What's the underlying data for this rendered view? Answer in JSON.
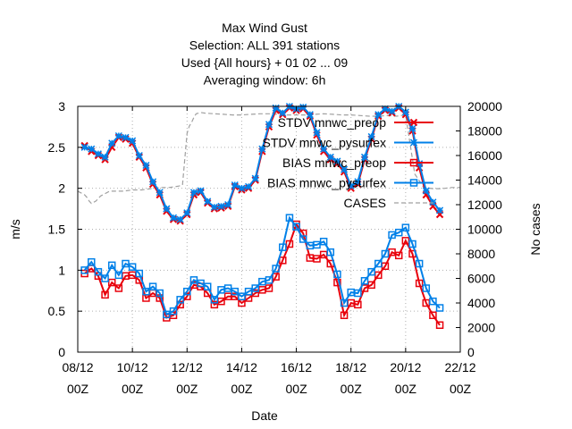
{
  "chart_data": {
    "type": "line",
    "title_lines": [
      "Max Wind Gust",
      "Selection: ALL    391 stations",
      "Used {All hours} + 01 02 ... 09",
      "Averaging window:  6h"
    ],
    "xlabel": "Date",
    "ylabel": "m/s",
    "y2label": "No cases",
    "xlim": [
      0,
      84
    ],
    "ylim": [
      0,
      3
    ],
    "y2lim": [
      0,
      20000
    ],
    "x_ticks": [
      {
        "x": 0,
        "label1": "08/12",
        "label2": "00Z"
      },
      {
        "x": 12,
        "label1": "10/12",
        "label2": "00Z"
      },
      {
        "x": 24,
        "label1": "12/12",
        "label2": "00Z"
      },
      {
        "x": 36,
        "label1": "14/12",
        "label2": "00Z"
      },
      {
        "x": 48,
        "label1": "16/12",
        "label2": "00Z"
      },
      {
        "x": 60,
        "label1": "18/12",
        "label2": "00Z"
      },
      {
        "x": 72,
        "label1": "20/12",
        "label2": "00Z"
      },
      {
        "x": 84,
        "label1": "22/12",
        "label2": "00Z"
      }
    ],
    "y_ticks": [
      "0",
      "0.5",
      "1",
      "1.5",
      "2",
      "2.5",
      "3"
    ],
    "y_tick_values": [
      0,
      0.5,
      1,
      1.5,
      2,
      2.5,
      3
    ],
    "y2_ticks": [
      "0",
      "2000",
      "4000",
      "6000",
      "8000",
      "10000",
      "12000",
      "14000",
      "16000",
      "18000",
      "20000"
    ],
    "y2_tick_values": [
      0,
      2000,
      4000,
      6000,
      8000,
      10000,
      12000,
      14000,
      16000,
      18000,
      20000
    ],
    "grid": true,
    "legend_position": "top-right",
    "x": [
      1.5,
      3,
      4.5,
      6,
      7.5,
      9,
      10.5,
      12,
      13.5,
      15,
      16.5,
      18,
      19.5,
      21,
      22.5,
      24,
      25.5,
      27,
      28.5,
      30,
      31.5,
      33,
      34.5,
      36,
      37.5,
      39,
      40.5,
      42,
      43.5,
      45,
      46.5,
      48,
      49.5,
      51,
      52.5,
      54,
      55.5,
      57,
      58.5,
      60,
      61.5,
      63,
      64.5,
      66,
      67.5,
      69,
      70.5,
      72,
      73.5,
      75,
      76.5,
      78,
      79.5
    ],
    "series": [
      {
        "name": "STDV mnwc_preop",
        "axis": "y",
        "color": "#e8000b",
        "marker": "x",
        "values": [
          2.52,
          2.45,
          2.4,
          2.35,
          2.5,
          2.62,
          2.6,
          2.55,
          2.38,
          2.25,
          2.05,
          1.92,
          1.72,
          1.62,
          1.6,
          1.68,
          1.92,
          1.95,
          1.82,
          1.75,
          1.76,
          1.78,
          2.02,
          1.98,
          2.0,
          2.1,
          2.45,
          2.75,
          2.95,
          2.9,
          2.98,
          2.95,
          2.97,
          2.88,
          2.65,
          2.45,
          2.35,
          2.3,
          2.2,
          2.0,
          2.05,
          2.35,
          2.6,
          2.88,
          2.95,
          2.92,
          2.98,
          2.9,
          2.7,
          2.25,
          1.92,
          1.78,
          1.68
        ]
      },
      {
        "name": "STDV mnwc_pysurfex",
        "axis": "y",
        "color": "#0080e8",
        "marker": "*",
        "values": [
          2.5,
          2.48,
          2.42,
          2.38,
          2.55,
          2.64,
          2.62,
          2.58,
          2.4,
          2.28,
          2.08,
          1.95,
          1.75,
          1.64,
          1.62,
          1.7,
          1.95,
          1.97,
          1.84,
          1.77,
          1.78,
          1.8,
          2.04,
          2.0,
          2.02,
          2.12,
          2.48,
          2.78,
          2.98,
          2.92,
          3.0,
          2.97,
          2.99,
          2.9,
          2.68,
          2.48,
          2.38,
          2.33,
          2.23,
          2.03,
          2.08,
          2.38,
          2.63,
          2.9,
          2.97,
          2.94,
          3.0,
          2.93,
          2.73,
          2.3,
          1.97,
          1.83,
          1.73
        ]
      },
      {
        "name": "BIAS mnwc_preop",
        "axis": "y",
        "color": "#e8000b",
        "marker": "square",
        "values": [
          0.96,
          1.02,
          0.93,
          0.7,
          0.85,
          0.78,
          0.93,
          0.94,
          0.88,
          0.66,
          0.72,
          0.66,
          0.42,
          0.45,
          0.58,
          0.68,
          0.82,
          0.8,
          0.72,
          0.58,
          0.62,
          0.68,
          0.68,
          0.6,
          0.66,
          0.72,
          0.76,
          0.78,
          0.92,
          1.12,
          1.32,
          1.56,
          1.45,
          1.15,
          1.14,
          1.19,
          1.08,
          0.85,
          0.45,
          0.6,
          0.58,
          0.78,
          0.82,
          0.94,
          1.05,
          1.22,
          1.18,
          1.36,
          1.2,
          0.84,
          0.6,
          0.45,
          0.33
        ]
      },
      {
        "name": "BIAS mnwc_pysurfex",
        "axis": "y",
        "color": "#0080e8",
        "marker": "square",
        "values": [
          1.0,
          1.1,
          0.98,
          0.9,
          1.06,
          0.94,
          1.08,
          1.04,
          0.96,
          0.74,
          0.8,
          0.72,
          0.46,
          0.5,
          0.64,
          0.74,
          0.88,
          0.84,
          0.8,
          0.64,
          0.76,
          0.78,
          0.74,
          0.68,
          0.74,
          0.78,
          0.86,
          0.88,
          1.02,
          1.28,
          1.64,
          1.53,
          1.38,
          1.3,
          1.31,
          1.35,
          1.22,
          0.95,
          0.6,
          0.73,
          0.72,
          0.87,
          0.98,
          1.08,
          1.2,
          1.43,
          1.46,
          1.52,
          1.32,
          1.08,
          0.78,
          0.62,
          0.54
        ]
      },
      {
        "name": "CASES",
        "axis": "y2",
        "color": "#a0a0a0",
        "marker": "none",
        "dashed": true,
        "x": [
          0,
          0.5,
          1,
          1.5,
          2,
          2.5,
          3,
          3.5,
          4,
          4.5,
          5,
          6,
          7,
          8,
          9,
          10,
          12,
          14,
          16,
          18,
          20,
          22,
          23,
          24,
          24.5,
          25,
          25.5,
          26,
          27,
          28,
          30,
          32,
          34,
          36,
          38,
          40,
          42,
          44,
          46,
          48,
          50,
          52,
          54,
          56,
          58,
          60,
          62,
          64,
          66,
          68,
          70,
          72,
          74,
          76,
          78,
          80,
          82,
          84
        ],
        "values": [
          13100,
          13000,
          12900,
          12800,
          12600,
          12300,
          12100,
          12200,
          12300,
          12500,
          12700,
          12900,
          13100,
          13100,
          13100,
          13100,
          13200,
          13200,
          13300,
          13400,
          13400,
          13500,
          13600,
          17800,
          18400,
          18700,
          19100,
          19400,
          19500,
          19450,
          19400,
          19350,
          19300,
          19300,
          19350,
          19400,
          19400,
          19350,
          19300,
          19300,
          19300,
          19350,
          19400,
          19350,
          19300,
          19300,
          19250,
          19200,
          19200,
          19250,
          19200,
          19300,
          14500,
          13400,
          13300,
          13300,
          13400,
          13400
        ]
      }
    ]
  }
}
